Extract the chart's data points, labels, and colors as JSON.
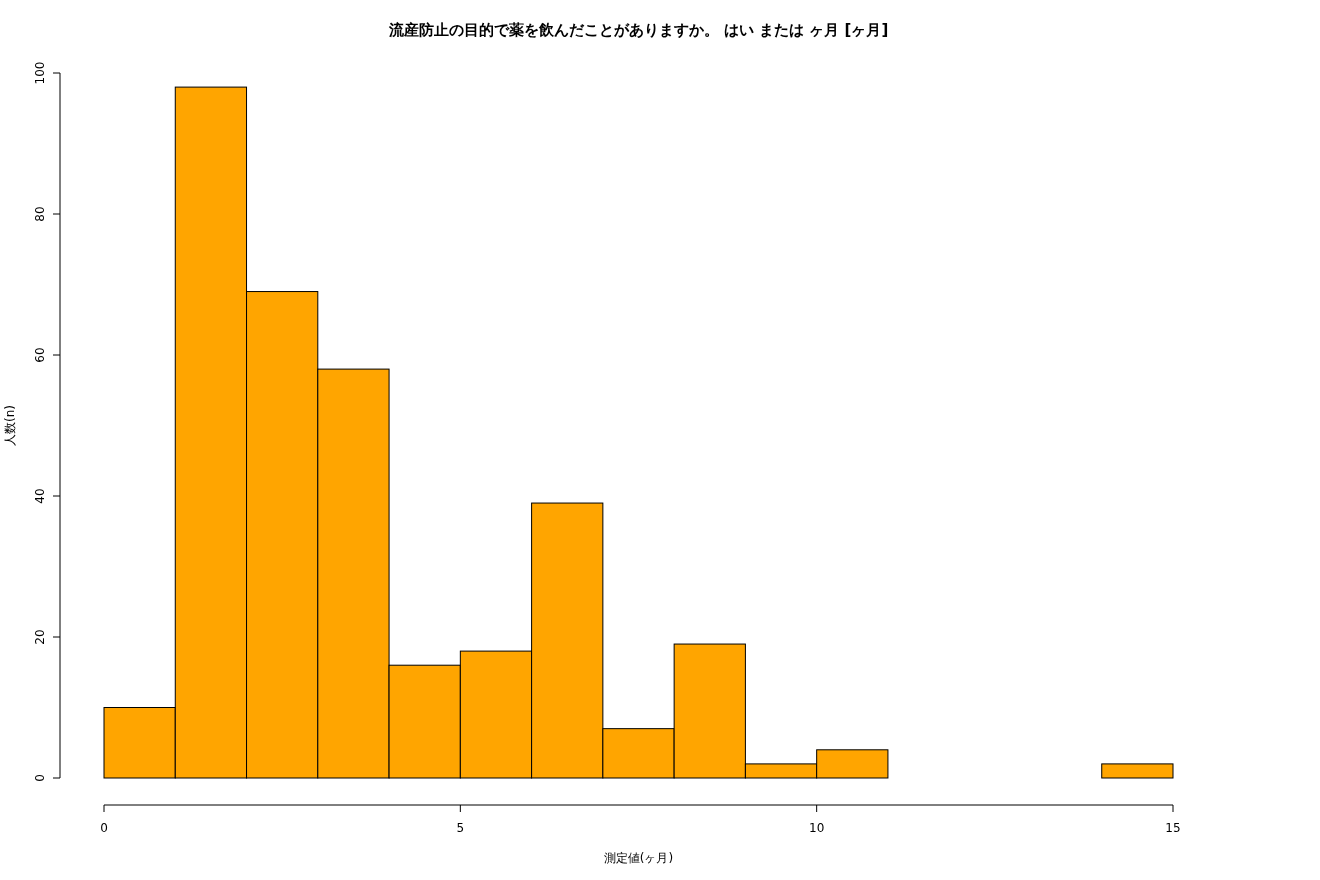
{
  "chart_data": {
    "type": "histogram",
    "title": "流産防止の目的で薬を飲んだことがありますか。 はい または ヶ月 [ヶ月]",
    "xlabel": "測定値(ヶ月)",
    "ylabel": "人数(n)",
    "bins": [
      0,
      1,
      2,
      3,
      4,
      5,
      6,
      7,
      8,
      9,
      10,
      11,
      12,
      13,
      14,
      15
    ],
    "values": [
      10,
      98,
      69,
      58,
      16,
      18,
      39,
      7,
      19,
      2,
      4,
      0,
      0,
      0,
      2
    ],
    "color": "#ffa500",
    "xlim": [
      0,
      15
    ],
    "ylim": [
      0,
      100
    ],
    "xticks": [
      0,
      5,
      10,
      15
    ],
    "yticks": [
      0,
      20,
      40,
      60,
      80,
      100
    ]
  }
}
